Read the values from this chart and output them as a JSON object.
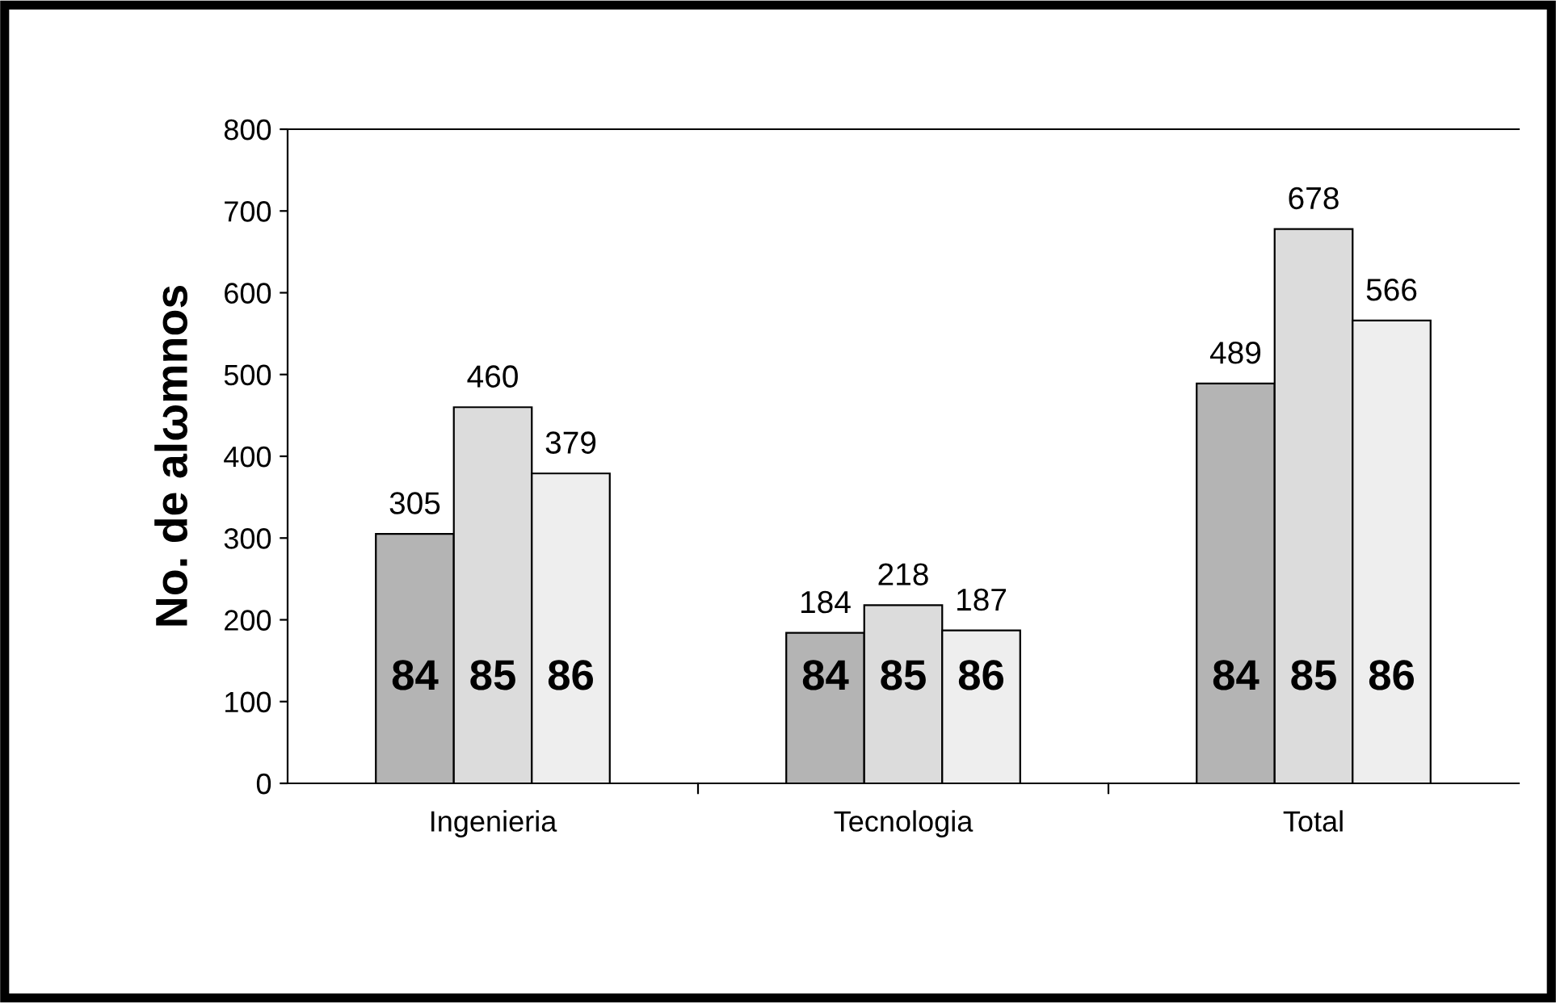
{
  "chart_data": {
    "type": "bar",
    "ylabel": "No. de alωmnos",
    "categories": [
      "Ingenieria",
      "Tecnologia",
      "Total"
    ],
    "series": [
      {
        "name": "84",
        "color": "#b4b4b4",
        "values": [
          305,
          184,
          489
        ]
      },
      {
        "name": "85",
        "color": "#dcdcdc",
        "values": [
          460,
          218,
          678
        ]
      },
      {
        "name": "86",
        "color": "#eeeeee",
        "values": [
          379,
          187,
          566
        ]
      }
    ],
    "ylim": [
      0,
      800
    ],
    "yticks": [
      0,
      100,
      200,
      300,
      400,
      500,
      600,
      700,
      800
    ],
    "data_labels": true,
    "grid": false,
    "legend": false
  }
}
